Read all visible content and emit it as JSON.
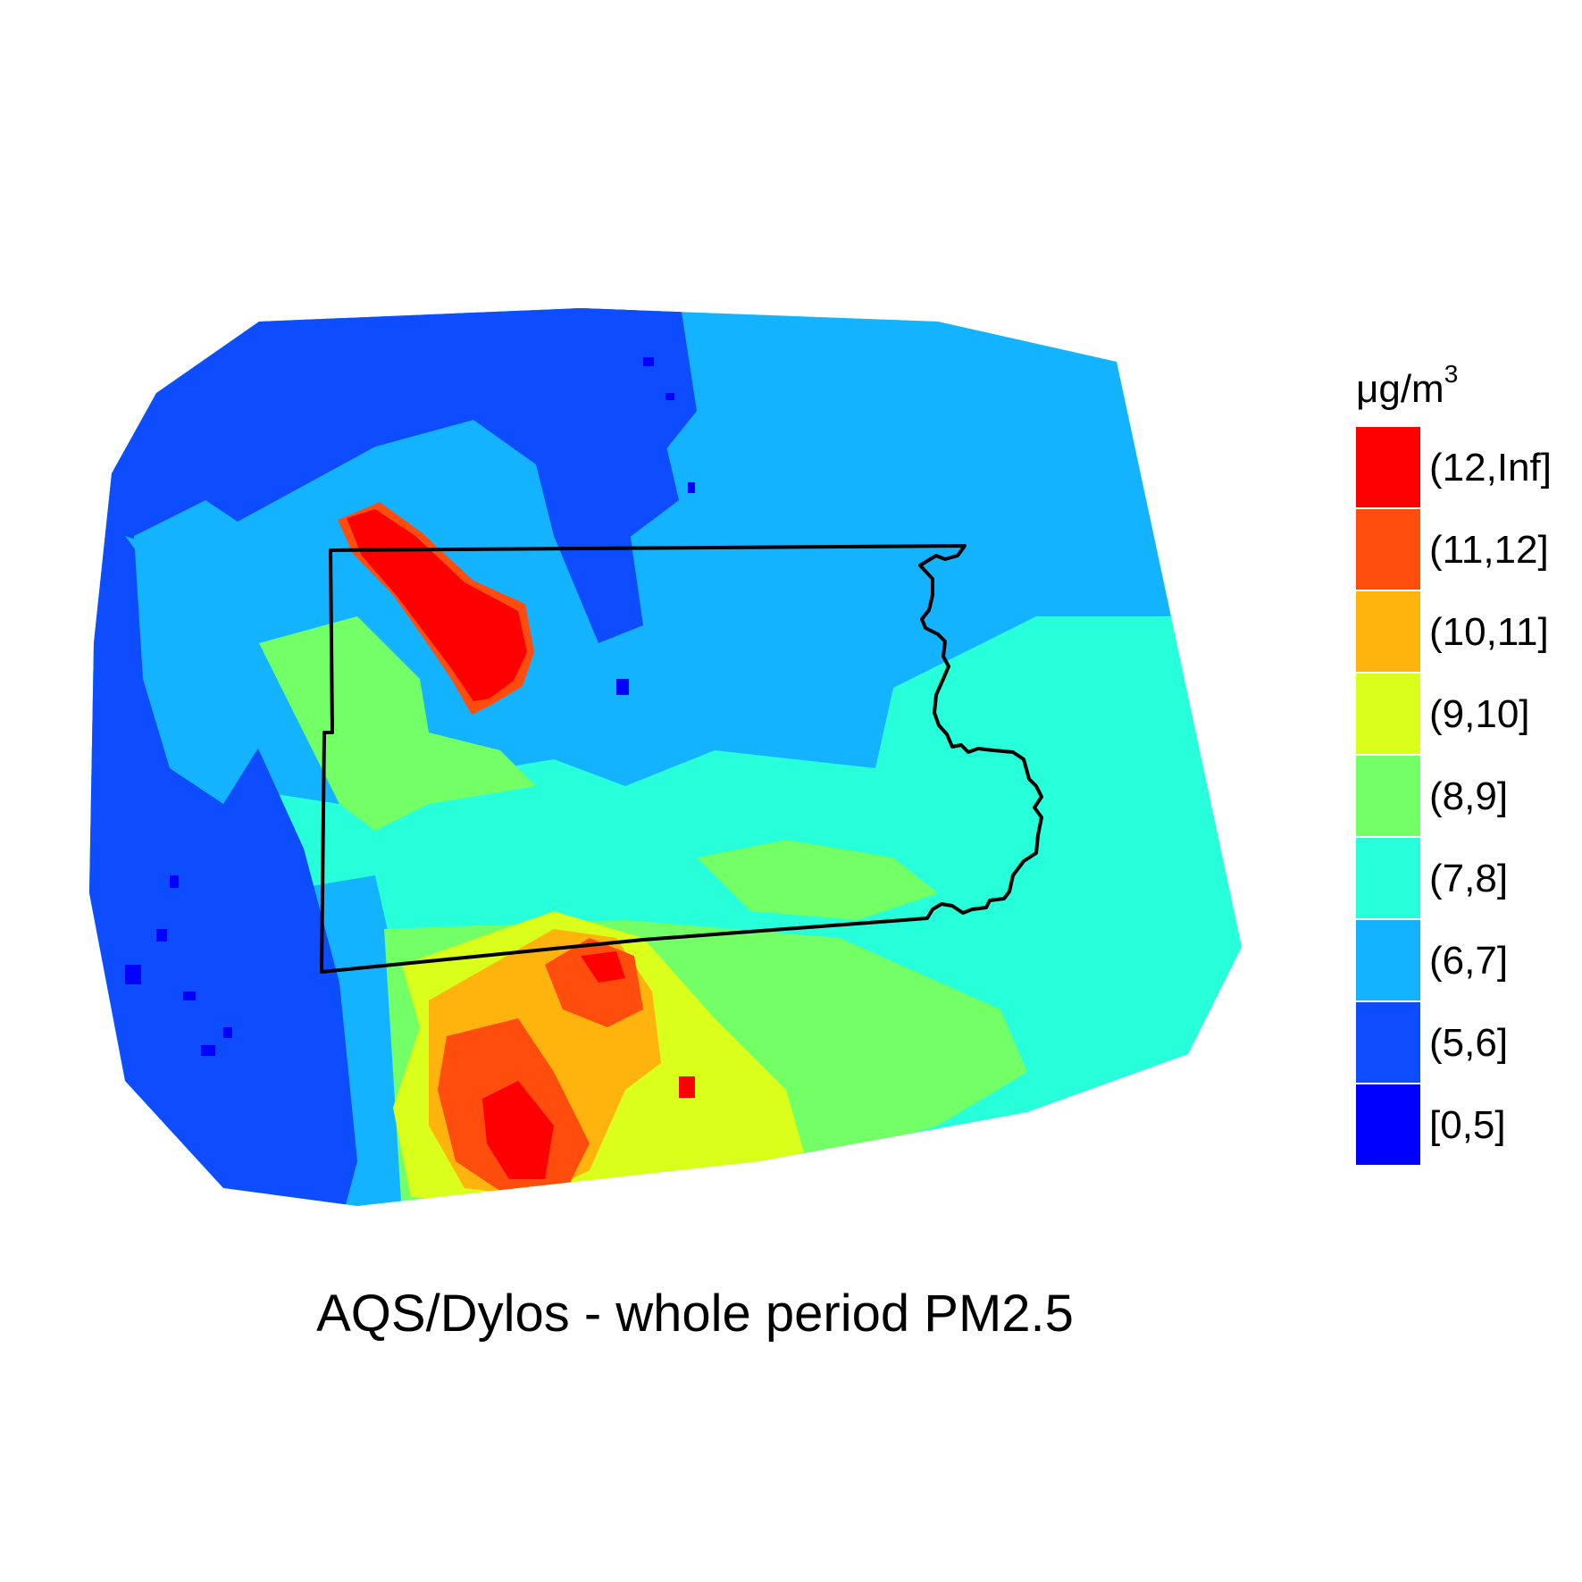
{
  "title": "AQS/Dylos - whole period PM2.5",
  "legend": {
    "unit_main": "μg/m",
    "unit_sup": "3",
    "classes": [
      {
        "label": "(12,Inf]",
        "color": "#ff0000"
      },
      {
        "label": "(11,12]",
        "color": "#ff4d0d"
      },
      {
        "label": "(10,11]",
        "color": "#ffb30d"
      },
      {
        "label": "(9,10]",
        "color": "#d9ff1a"
      },
      {
        "label": "(8,9]",
        "color": "#73ff66"
      },
      {
        "label": "(7,8]",
        "color": "#26ffd9"
      },
      {
        "label": "(6,7]",
        "color": "#14b3ff"
      },
      {
        "label": "(5,6]",
        "color": "#0d4dff"
      },
      {
        "label": "[0,5]",
        "color": "#0000ff"
      }
    ]
  },
  "colors": {
    "boundary": "#000000",
    "background": "#ffffff"
  }
}
